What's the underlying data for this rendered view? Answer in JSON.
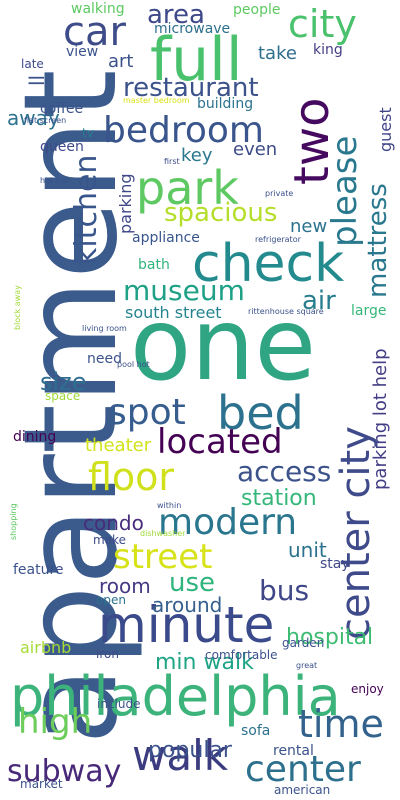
{
  "words": [
    {
      "text": "apartment",
      "color": "#3b5b8c"
    },
    {
      "text": "one",
      "color": "#2fa584"
    },
    {
      "text": "philadelphia",
      "color": "#3cb37a"
    },
    {
      "text": "minute",
      "color": "#3b4a8a"
    },
    {
      "text": "check",
      "color": "#238a8d"
    },
    {
      "text": "full",
      "color": "#4ac16d"
    },
    {
      "text": "walk",
      "color": "#3b3c7f"
    },
    {
      "text": "park",
      "color": "#5ec962"
    },
    {
      "text": "bed",
      "color": "#2c718e"
    },
    {
      "text": "center city",
      "color": "#3e4a89"
    },
    {
      "text": "two",
      "color": "#450a5f"
    },
    {
      "text": "please",
      "color": "#29788e"
    },
    {
      "text": "city",
      "color": "#4ac16d"
    },
    {
      "text": "bedroom",
      "color": "#39558c"
    },
    {
      "text": "street",
      "color": "#d8e219"
    },
    {
      "text": "modern",
      "color": "#2a768e"
    },
    {
      "text": "floor",
      "color": "#d0e11c"
    },
    {
      "text": "located",
      "color": "#440154"
    },
    {
      "text": "museum",
      "color": "#1fa187"
    },
    {
      "text": "spot",
      "color": "#365d8d"
    },
    {
      "text": "car",
      "color": "#3e4c8a"
    },
    {
      "text": "kitchen",
      "color": "#39568c"
    },
    {
      "text": "time",
      "color": "#33628d"
    },
    {
      "text": "center",
      "color": "#2d708e"
    },
    {
      "text": "high",
      "color": "#6ccd5a"
    },
    {
      "text": "subway",
      "color": "#482878"
    },
    {
      "text": "restaurant",
      "color": "#3b528b"
    },
    {
      "text": "mattress",
      "color": "#2a788e"
    },
    {
      "text": "spacious",
      "color": "#b5de2b"
    },
    {
      "text": "area",
      "color": "#3e4989"
    },
    {
      "text": "air",
      "color": "#287d8e"
    },
    {
      "text": "access",
      "color": "#3b528b"
    },
    {
      "text": "size",
      "color": "#2e6e8e"
    },
    {
      "text": "bus",
      "color": "#3f4788"
    },
    {
      "text": "use",
      "color": "#2fb47c"
    },
    {
      "text": "parking lot help",
      "color": "#433e85"
    },
    {
      "text": "station",
      "color": "#35b779"
    },
    {
      "text": "popular",
      "color": "#3b528b"
    },
    {
      "text": "min walk",
      "color": "#20a486"
    },
    {
      "text": "hospital",
      "color": "#3fbc73"
    },
    {
      "text": "unit",
      "color": "#2c728e"
    },
    {
      "text": "around",
      "color": "#355f8d"
    },
    {
      "text": "room",
      "color": "#443983"
    },
    {
      "text": "condo",
      "color": "#472d7b"
    },
    {
      "text": "theater",
      "color": "#d2e21b"
    },
    {
      "text": "south street",
      "color": "#25848e"
    },
    {
      "text": "new",
      "color": "#2c728e"
    },
    {
      "text": "parking",
      "color": "#3f4788"
    },
    {
      "text": "key",
      "color": "#2a788e"
    },
    {
      "text": "even",
      "color": "#3e4c8a"
    },
    {
      "text": "guest",
      "color": "#404588"
    },
    {
      "text": "art",
      "color": "#3b528b"
    },
    {
      "text": "take",
      "color": "#2e6e8e"
    },
    {
      "text": "ll",
      "color": "#3b528b"
    },
    {
      "text": "away",
      "color": "#2c728e"
    },
    {
      "text": "walking",
      "color": "#5ec962"
    },
    {
      "text": "microwave",
      "color": "#2d708e"
    },
    {
      "text": "people",
      "color": "#5ec962"
    },
    {
      "text": "king",
      "color": "#433e85"
    },
    {
      "text": "view",
      "color": "#3b528b"
    },
    {
      "text": "late",
      "color": "#3e4989"
    },
    {
      "text": "coffee",
      "color": "#3b528b"
    },
    {
      "text": "building",
      "color": "#2c728e"
    },
    {
      "text": "queen",
      "color": "#3e4989"
    },
    {
      "text": "tv",
      "color": "#287d8e"
    },
    {
      "text": "appliance",
      "color": "#39568c"
    },
    {
      "text": "bath",
      "color": "#2fb47c"
    },
    {
      "text": "large",
      "color": "#35b779"
    },
    {
      "text": "need",
      "color": "#3b528b"
    },
    {
      "text": "space",
      "color": "#9fda3a"
    },
    {
      "text": "dining",
      "color": "#440154"
    },
    {
      "text": "feature",
      "color": "#3b528b"
    },
    {
      "text": "make",
      "color": "#3e4c8a"
    },
    {
      "text": "stay",
      "color": "#3e4989"
    },
    {
      "text": "open",
      "color": "#2c728e"
    },
    {
      "text": "garden",
      "color": "#3b528b"
    },
    {
      "text": "airbnb",
      "color": "#a5db36"
    },
    {
      "text": "iron",
      "color": "#3e4989"
    },
    {
      "text": "comfortable",
      "color": "#3b528b"
    },
    {
      "text": "enjoy",
      "color": "#440154"
    },
    {
      "text": "include",
      "color": "#3b528b"
    },
    {
      "text": "sofa",
      "color": "#2c728e"
    },
    {
      "text": "rental",
      "color": "#3b528b"
    },
    {
      "text": "market",
      "color": "#3b528b"
    },
    {
      "text": "american",
      "color": "#3b528b"
    },
    {
      "text": "master bedroom",
      "color": "#d8e219"
    },
    {
      "text": "flat screen",
      "color": "#3b528b"
    },
    {
      "text": "first",
      "color": "#3e4989"
    },
    {
      "text": "hot tub",
      "color": "#3b528b"
    },
    {
      "text": "private",
      "color": "#3b528b"
    },
    {
      "text": "refrigerator",
      "color": "#3b528b"
    },
    {
      "text": "rittenhouse square",
      "color": "#3b528b"
    },
    {
      "text": "living room",
      "color": "#3b528b"
    },
    {
      "text": "block away",
      "color": "#a0da39"
    },
    {
      "text": "pool hot",
      "color": "#3b528b"
    },
    {
      "text": "within",
      "color": "#3b528b"
    },
    {
      "text": "dishwasher",
      "color": "#a0da39"
    },
    {
      "text": "shopping",
      "color": "#5ec962"
    },
    {
      "text": "great",
      "color": "#3b528b"
    }
  ]
}
